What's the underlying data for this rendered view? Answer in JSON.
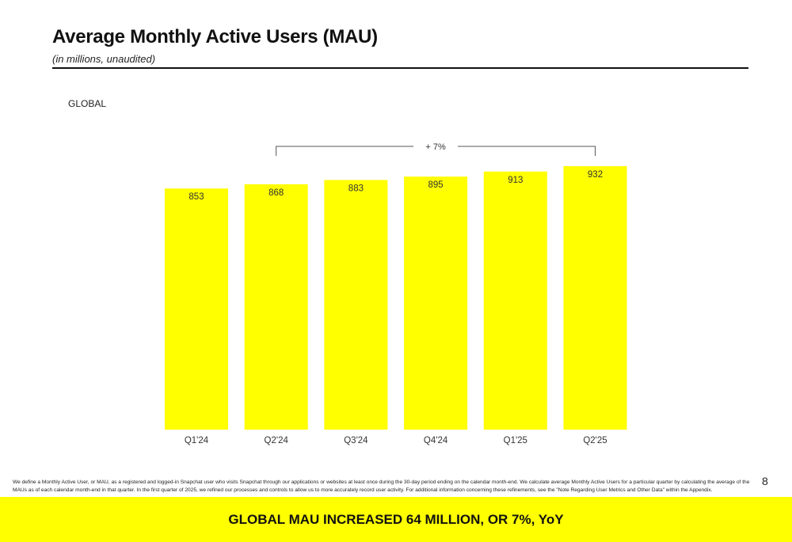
{
  "slide": {
    "title": "Average Monthly Active Users (MAU)",
    "subtitle": "(in millions, unaudited)",
    "segment_label": "GLOBAL",
    "page_number": "8",
    "footnote": "We define a Monthly Active User, or MAU, as a registered and logged-in Snapchat user who visits Snapchat through our applications or websites at least once during the 30-day period ending on the calendar month-end. We calculate average Monthly Active Users for a particular quarter by calculating the average of the MAUs as of each calendar month-end in that quarter. In the first quarter of 2025, we refined our processes and controls to allow us to more accurately record user activity. For additional information concerning these refinements, see the \"Note Regarding User Metrics and Other Data\" within the Appendix.",
    "banner": "GLOBAL MAU INCREASED 64 MILLION, OR 7%, YoY"
  },
  "colors": {
    "bar": "#FFFF00",
    "banner": "#FFFF00",
    "text": "#111111",
    "bracket": "#555555"
  },
  "chart_data": {
    "type": "bar",
    "categories": [
      "Q1'24",
      "Q2'24",
      "Q3'24",
      "Q4'24",
      "Q1'25",
      "Q2'25"
    ],
    "values": [
      853,
      868,
      883,
      895,
      913,
      932
    ],
    "title": "Average Monthly Active Users (MAU)",
    "subtitle": "(in millions, unaudited)",
    "xlabel": "",
    "ylabel": "",
    "ylim": [
      0,
      932
    ],
    "grid": false,
    "legend": "none",
    "annotations": [
      {
        "text": "+ 7%",
        "from_category": "Q2'24",
        "to_category": "Q2'25"
      }
    ]
  }
}
